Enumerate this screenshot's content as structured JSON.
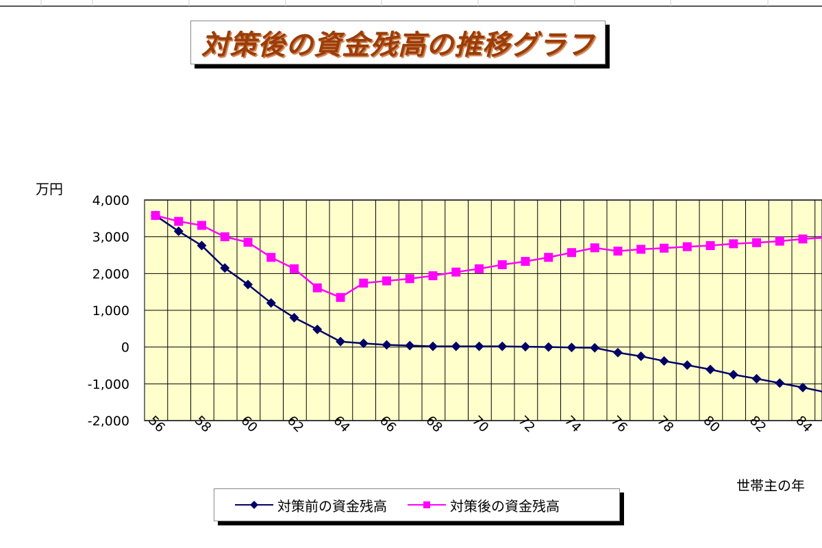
{
  "chart_data": {
    "type": "line",
    "title": "対策後の資金残高の推移グラフ",
    "ylabel": "万円",
    "xlabel": "世帯主の年",
    "ylim": [
      -2000,
      4000
    ],
    "yticks": [
      "4,000",
      "3,000",
      "2,000",
      "1,000",
      "0",
      "-1,000",
      "-2,000"
    ],
    "ytick_values": [
      4000,
      3000,
      2000,
      1000,
      0,
      -1000,
      -2000
    ],
    "x": [
      56,
      57,
      58,
      59,
      60,
      61,
      62,
      63,
      64,
      65,
      66,
      67,
      68,
      69,
      70,
      71,
      72,
      73,
      74,
      75,
      76,
      77,
      78,
      79,
      80,
      81,
      82,
      83,
      84,
      85
    ],
    "xtick_labels": [
      "56",
      "58",
      "60",
      "62",
      "64",
      "66",
      "68",
      "70",
      "72",
      "74",
      "76",
      "78",
      "80",
      "82",
      "84"
    ],
    "grid": true,
    "plot_background": "#ffffcc",
    "legend_position": "bottom",
    "series": [
      {
        "name": "対策前の資金残高",
        "color": "#000066",
        "marker": "diamond",
        "values": [
          3580,
          3150,
          2760,
          2150,
          1700,
          1200,
          800,
          480,
          150,
          100,
          60,
          40,
          20,
          20,
          20,
          20,
          10,
          0,
          -10,
          -20,
          -150,
          -250,
          -380,
          -490,
          -610,
          -750,
          -860,
          -980,
          -1100,
          -1230
        ]
      },
      {
        "name": "対策後の資金残高",
        "color": "#ff00ff",
        "marker": "square",
        "values": [
          3580,
          3420,
          3310,
          3000,
          2850,
          2440,
          2130,
          1610,
          1350,
          1740,
          1800,
          1860,
          1940,
          2040,
          2130,
          2240,
          2330,
          2440,
          2570,
          2700,
          2610,
          2660,
          2690,
          2730,
          2760,
          2810,
          2840,
          2880,
          2940,
          2980
        ]
      }
    ]
  }
}
